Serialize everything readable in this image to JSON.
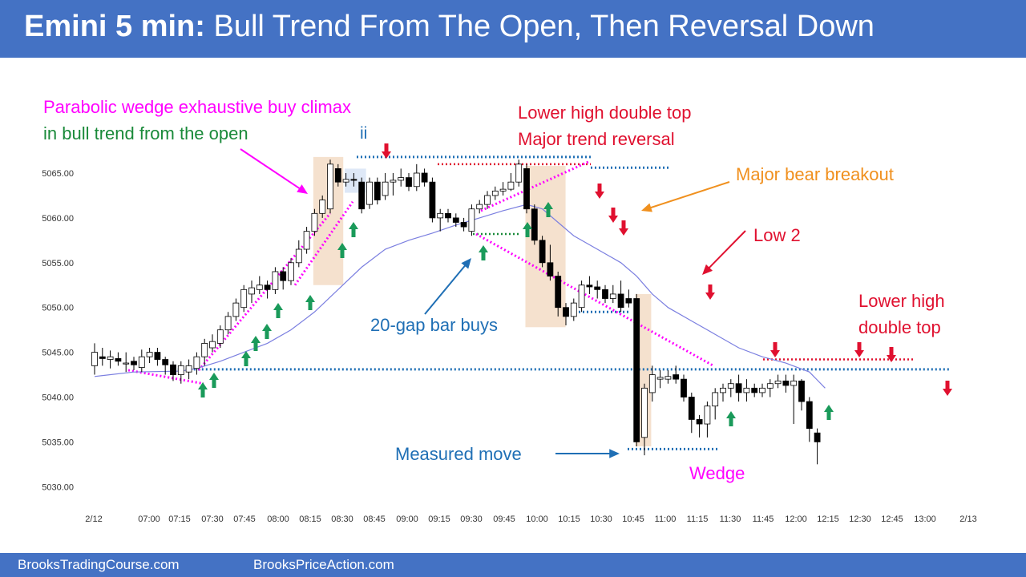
{
  "header": {
    "title_bold": "Emini 5 min:",
    "title_rest": "Bull Trend From The Open, Then Reversal Down"
  },
  "footer": {
    "link_left": "BrooksTradingCourse.com",
    "link_right": "BrooksPriceAction.com"
  },
  "colors": {
    "header_bg": "#4472c4",
    "magenta": "#ff00ff",
    "green": "#1a8a3a",
    "red": "#e0102f",
    "blue": "#1f6fb5",
    "orange": "#f0901e",
    "ema": "#7b7fe0",
    "bull_arrow": "#1a9a5a",
    "bear_arrow": "#e0102f",
    "box": "#f3dcc6"
  },
  "annotations": {
    "parabolic_line1": "Parabolic wedge exhaustive buy climax",
    "parabolic_line2": "in bull trend from the open",
    "ii": "ii",
    "lower_high_line1": "Lower high double top",
    "lower_high_line2": "Major trend reversal",
    "major_bear": "Major bear breakout",
    "low2": "Low 2",
    "gap_bar": "20-gap bar buys",
    "measured_move": "Measured move",
    "wedge": "Wedge",
    "lower_high_dt_line1": "Lower high",
    "lower_high_dt_line2": "double top"
  },
  "chart_data": {
    "type": "candlestick",
    "timeframe": "5 min",
    "x_tick_labels": [
      "2/12",
      "07:00",
      "07:15",
      "07:30",
      "07:45",
      "08:00",
      "08:15",
      "08:30",
      "08:45",
      "09:00",
      "09:15",
      "09:30",
      "09:45",
      "10:00",
      "10:15",
      "10:30",
      "10:45",
      "11:00",
      "11:15",
      "11:30",
      "11:45",
      "12:00",
      "12:15",
      "12:30",
      "12:45",
      "13:00",
      "2/13"
    ],
    "y_ticks": [
      5030,
      5035,
      5040,
      5045,
      5050,
      5055,
      5060,
      5065
    ],
    "y_tick_labels": [
      "5030.00",
      "5035.00",
      "5040.00",
      "5045.00",
      "5050.00",
      "5055.00",
      "5060.00",
      "5065.00"
    ],
    "ylim": [
      5028.5,
      5070
    ],
    "candles": [
      [
        5043.5,
        5045.0,
        5046.0,
        5042.5
      ],
      [
        5044.5,
        5044.3,
        5045.5,
        5043.5
      ],
      [
        5044.2,
        5044.5,
        5045.2,
        5043.2
      ],
      [
        5044.3,
        5044.0,
        5045.0,
        5043.5
      ],
      [
        5043.8,
        5043.8,
        5045.0,
        5042.8
      ],
      [
        5044.0,
        5043.6,
        5044.5,
        5043.0
      ],
      [
        5043.3,
        5044.5,
        5045.3,
        5042.8
      ],
      [
        5044.5,
        5045.0,
        5045.5,
        5043.8
      ],
      [
        5045.0,
        5044.2,
        5045.5,
        5043.5
      ],
      [
        5044.2,
        5043.6,
        5044.5,
        5042.5
      ],
      [
        5043.6,
        5042.5,
        5044.0,
        5041.8
      ],
      [
        5042.5,
        5043.5,
        5044.0,
        5041.5
      ],
      [
        5042.8,
        5043.5,
        5044.2,
        5042.0
      ],
      [
        5043.2,
        5044.5,
        5045.0,
        5042.5
      ],
      [
        5044.5,
        5046.0,
        5046.5,
        5043.5
      ],
      [
        5045.5,
        5046.2,
        5047.0,
        5045.0
      ],
      [
        5046.0,
        5047.5,
        5048.0,
        5045.5
      ],
      [
        5047.5,
        5049.0,
        5049.5,
        5047.0
      ],
      [
        5049.0,
        5050.5,
        5051.0,
        5048.5
      ],
      [
        5050.0,
        5052.0,
        5052.5,
        5049.5
      ],
      [
        5051.5,
        5052.2,
        5053.0,
        5050.5
      ],
      [
        5052.0,
        5052.5,
        5053.5,
        5051.5
      ],
      [
        5052.5,
        5052.0,
        5053.0,
        5051.0
      ],
      [
        5052.0,
        5054.0,
        5054.5,
        5051.5
      ],
      [
        5054.0,
        5053.0,
        5054.5,
        5052.0
      ],
      [
        5053.0,
        5055.0,
        5055.5,
        5052.5
      ],
      [
        5055.0,
        5056.5,
        5057.5,
        5054.5
      ],
      [
        5056.5,
        5058.5,
        5059.0,
        5056.0
      ],
      [
        5058.5,
        5060.5,
        5061.0,
        5058.0
      ],
      [
        5060.5,
        5062.0,
        5062.5,
        5060.0
      ],
      [
        5061.0,
        5066.0,
        5066.5,
        5060.5
      ],
      [
        5065.5,
        5064.0,
        5066.0,
        5063.5
      ],
      [
        5064.0,
        5064.3,
        5065.0,
        5063.5
      ],
      [
        5064.3,
        5064.2,
        5065.0,
        5063.5
      ],
      [
        5064.0,
        5061.0,
        5064.5,
        5060.5
      ],
      [
        5061.5,
        5064.0,
        5064.5,
        5061.0
      ],
      [
        5064.0,
        5062.0,
        5064.5,
        5061.5
      ],
      [
        5062.5,
        5064.0,
        5065.0,
        5062.0
      ],
      [
        5064.0,
        5064.2,
        5065.0,
        5062.5
      ],
      [
        5064.2,
        5064.5,
        5065.5,
        5063.5
      ],
      [
        5064.5,
        5063.5,
        5065.0,
        5063.0
      ],
      [
        5063.5,
        5065.0,
        5066.0,
        5063.0
      ],
      [
        5065.0,
        5064.0,
        5065.5,
        5063.5
      ],
      [
        5064.0,
        5060.0,
        5064.5,
        5059.5
      ],
      [
        5060.0,
        5060.5,
        5061.0,
        5058.5
      ],
      [
        5060.5,
        5060.0,
        5061.0,
        5059.5
      ],
      [
        5060.0,
        5059.5,
        5060.5,
        5059.0
      ],
      [
        5059.5,
        5059.0,
        5060.0,
        5058.5
      ],
      [
        5058.5,
        5061.0,
        5061.5,
        5058.0
      ],
      [
        5061.0,
        5061.5,
        5062.0,
        5060.5
      ],
      [
        5061.5,
        5062.5,
        5063.0,
        5061.0
      ],
      [
        5062.5,
        5063.0,
        5063.5,
        5062.0
      ],
      [
        5063.0,
        5063.2,
        5064.0,
        5062.5
      ],
      [
        5063.2,
        5064.0,
        5065.0,
        5063.0
      ],
      [
        5064.0,
        5066.0,
        5066.5,
        5063.5
      ],
      [
        5065.5,
        5061.0,
        5066.0,
        5060.5
      ],
      [
        5061.0,
        5057.5,
        5061.5,
        5057.0
      ],
      [
        5057.5,
        5055.0,
        5058.0,
        5054.5
      ],
      [
        5055.0,
        5053.5,
        5057.0,
        5053.0
      ],
      [
        5053.5,
        5050.0,
        5054.0,
        5049.0
      ],
      [
        5050.0,
        5049.0,
        5050.5,
        5048.0
      ],
      [
        5049.0,
        5050.5,
        5051.0,
        5048.5
      ],
      [
        5050.0,
        5052.5,
        5053.0,
        5049.5
      ],
      [
        5052.5,
        5052.3,
        5053.5,
        5051.5
      ],
      [
        5052.3,
        5052.0,
        5053.0,
        5051.0
      ],
      [
        5052.0,
        5051.0,
        5052.5,
        5050.5
      ],
      [
        5051.0,
        5051.5,
        5052.5,
        5050.5
      ],
      [
        5051.5,
        5050.0,
        5053.0,
        5049.5
      ],
      [
        5051.0,
        5050.5,
        5052.0,
        5050.0
      ],
      [
        5051.0,
        5035.0,
        5051.5,
        5034.5
      ],
      [
        5035.5,
        5041.0,
        5041.5,
        5033.5
      ],
      [
        5040.5,
        5042.5,
        5043.5,
        5039.5
      ],
      [
        5042.0,
        5042.2,
        5043.0,
        5041.0
      ],
      [
        5042.0,
        5042.3,
        5043.0,
        5041.5
      ],
      [
        5042.5,
        5042.0,
        5043.5,
        5041.5
      ],
      [
        5042.0,
        5040.0,
        5042.5,
        5039.5
      ],
      [
        5040.0,
        5037.5,
        5040.5,
        5036.0
      ],
      [
        5037.5,
        5037.0,
        5038.0,
        5035.5
      ],
      [
        5037.0,
        5039.0,
        5039.5,
        5035.5
      ],
      [
        5039.0,
        5040.5,
        5041.0,
        5037.5
      ],
      [
        5040.5,
        5041.0,
        5041.5,
        5039.5
      ],
      [
        5041.0,
        5041.5,
        5042.0,
        5040.0
      ],
      [
        5041.5,
        5040.5,
        5042.5,
        5039.5
      ],
      [
        5040.5,
        5041.0,
        5042.0,
        5039.5
      ],
      [
        5041.0,
        5040.5,
        5041.5,
        5040.0
      ],
      [
        5040.5,
        5041.0,
        5041.5,
        5040.0
      ],
      [
        5041.0,
        5041.5,
        5042.0,
        5040.0
      ],
      [
        5041.5,
        5041.8,
        5042.5,
        5041.0
      ],
      [
        5041.8,
        5041.3,
        5042.5,
        5040.5
      ],
      [
        5041.3,
        5041.8,
        5042.5,
        5037.0
      ],
      [
        5041.8,
        5039.5,
        5042.0,
        5038.5
      ],
      [
        5039.5,
        5036.5,
        5040.0,
        5035.0
      ],
      [
        5036.0,
        5035.0,
        5036.5,
        5032.5
      ]
    ],
    "ema": [
      [
        0,
        5042.3
      ],
      [
        5,
        5042.8
      ],
      [
        11,
        5042.9
      ],
      [
        13,
        5043.2
      ],
      [
        16,
        5044.0
      ],
      [
        19,
        5045.0
      ],
      [
        22,
        5046.0
      ],
      [
        25,
        5047.5
      ],
      [
        28,
        5049.5
      ],
      [
        31,
        5052.0
      ],
      [
        34,
        5054.5
      ],
      [
        37,
        5056.5
      ],
      [
        40,
        5057.5
      ],
      [
        43,
        5058.3
      ],
      [
        46,
        5059.2
      ],
      [
        49,
        5060.0
      ],
      [
        52,
        5060.8
      ],
      [
        55,
        5061.5
      ],
      [
        57,
        5061.0
      ],
      [
        59,
        5059.5
      ],
      [
        61,
        5058.0
      ],
      [
        64,
        5056.5
      ],
      [
        67,
        5055.0
      ],
      [
        69,
        5053.5
      ],
      [
        71,
        5051.5
      ],
      [
        73,
        5050.0
      ],
      [
        76,
        5048.5
      ],
      [
        79,
        5047.0
      ],
      [
        82,
        5045.5
      ],
      [
        85,
        5044.5
      ],
      [
        88,
        5043.8
      ],
      [
        91,
        5042.8
      ],
      [
        93,
        5041.0
      ]
    ]
  }
}
